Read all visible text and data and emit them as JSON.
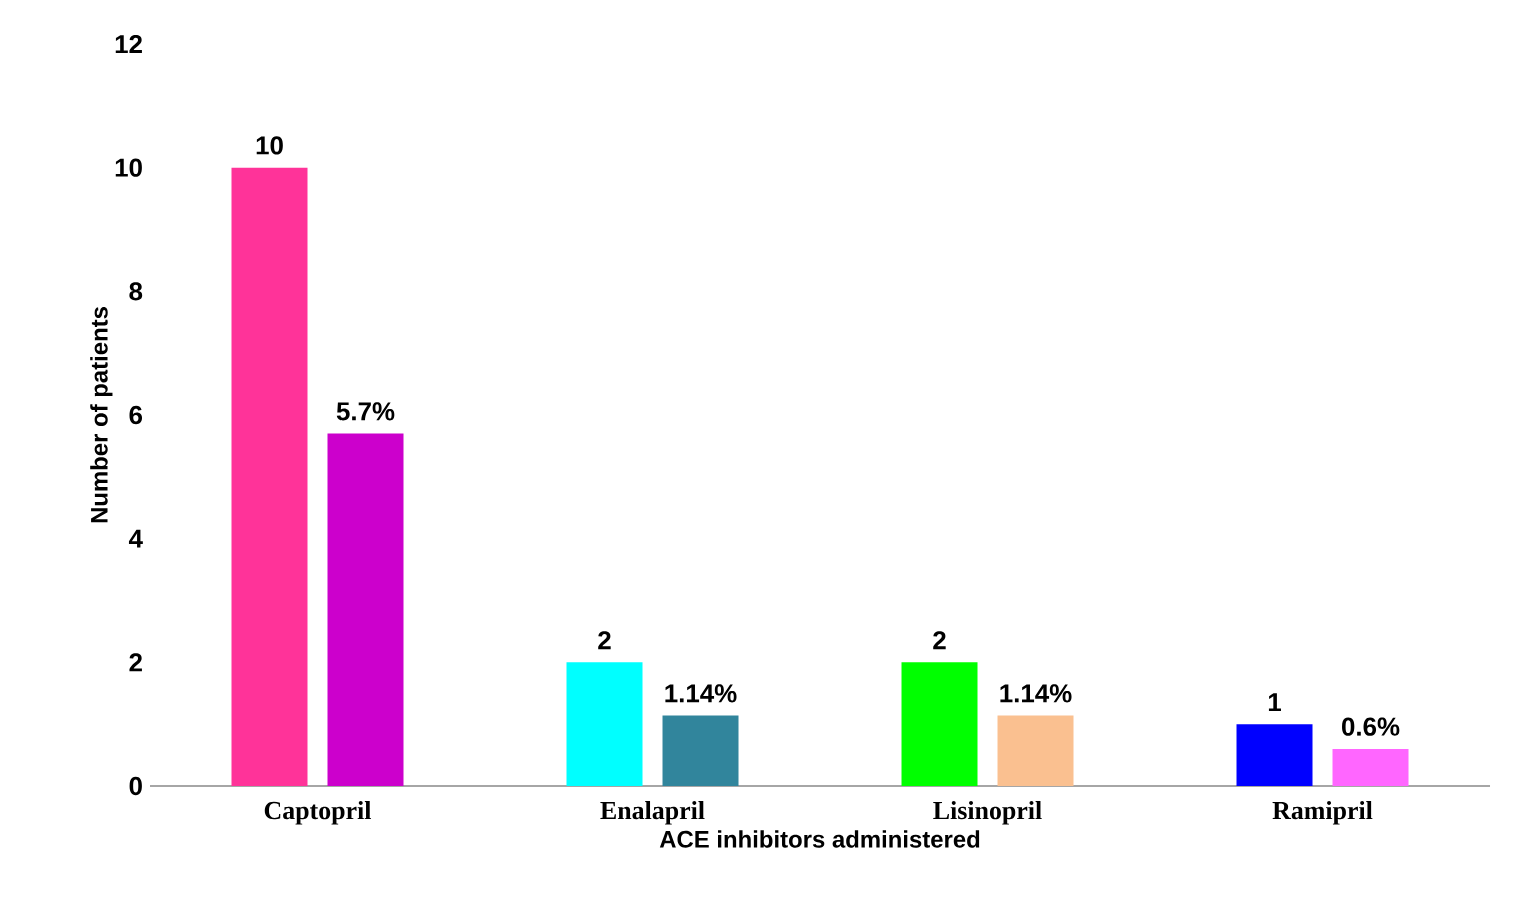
{
  "chart_data": {
    "type": "bar",
    "xlabel": "ACE inhibitors administered",
    "ylabel": "Number of patients",
    "categories": [
      "Captopril",
      "Enalapril",
      "Lisinopril",
      "Ramipril"
    ],
    "series": [
      {
        "values": [
          10,
          2,
          2,
          1
        ],
        "colors": [
          "#ff3399",
          "#00ffff",
          "#00ff00",
          "#0000ff"
        ],
        "value_labels": [
          "10",
          "2",
          "2",
          "1"
        ]
      },
      {
        "values": [
          5.7,
          1.14,
          1.14,
          0.6
        ],
        "colors": [
          "#cc00cc",
          "#31859c",
          "#fac090",
          "#ff66ff"
        ],
        "value_labels": [
          "5.7%",
          "1.14%",
          "1.14%",
          "0.6%"
        ]
      }
    ],
    "ylim": [
      0,
      12
    ],
    "yticks": [
      0,
      2,
      4,
      6,
      8,
      10,
      12
    ],
    "grid": false
  }
}
